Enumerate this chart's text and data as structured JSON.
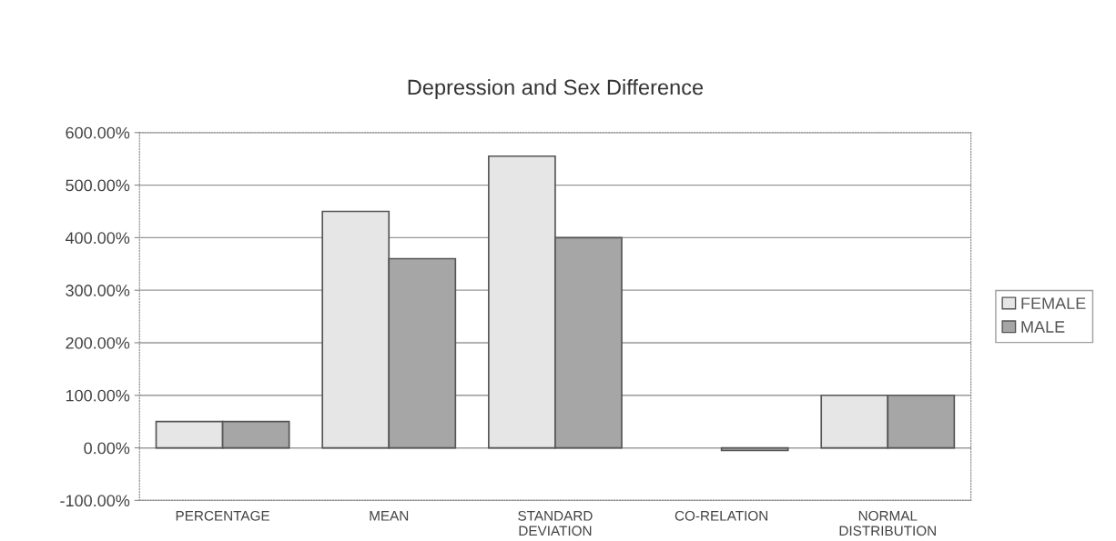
{
  "chart_data": {
    "type": "bar",
    "title": "Depression and Sex Difference",
    "categories": [
      "PERCENTAGE",
      "MEAN",
      "STANDARD DEVIATION",
      "CO-RELATION",
      "NORMAL DISTRIBUTION"
    ],
    "series": [
      {
        "name": "FEMALE",
        "color": "#e6e6e6",
        "values": [
          50,
          450,
          555,
          null,
          100
        ]
      },
      {
        "name": "MALE",
        "color": "#a6a6a6",
        "values": [
          50,
          360,
          400,
          -5,
          100
        ]
      }
    ],
    "ylim": [
      -100,
      600
    ],
    "yticks": [
      {
        "value": -100,
        "label": "-100.00%"
      },
      {
        "value": 0,
        "label": "0.00%"
      },
      {
        "value": 100,
        "label": "100.00%"
      },
      {
        "value": 200,
        "label": "200.00%"
      },
      {
        "value": 300,
        "label": "300.00%"
      },
      {
        "value": 400,
        "label": "400.00%"
      },
      {
        "value": 500,
        "label": "500.00%"
      },
      {
        "value": 600,
        "label": "600.00%"
      }
    ],
    "grid": "y",
    "legend": "right"
  }
}
